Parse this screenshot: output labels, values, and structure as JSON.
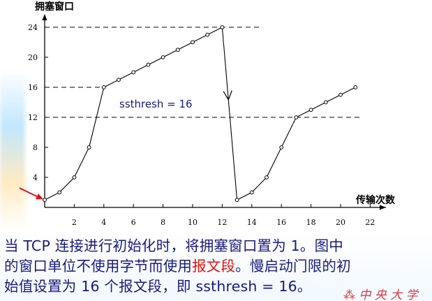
{
  "chart_data": {
    "type": "line",
    "ylabel": "拥塞窗口",
    "xlabel": "传输次数",
    "x_ticks": [
      0,
      2,
      4,
      6,
      8,
      10,
      12,
      14,
      16,
      18,
      20,
      22
    ],
    "x_tick_labels": [
      "2",
      "4",
      "6",
      "8",
      "10",
      "12",
      "14",
      "16",
      "18",
      "20",
      "22"
    ],
    "y_ticks": [
      4,
      8,
      12,
      16,
      20,
      24
    ],
    "xlim": [
      0,
      22.5
    ],
    "ylim": [
      0,
      26
    ],
    "series": [
      {
        "x": [
          0,
          1,
          2,
          3,
          4,
          5,
          6,
          7,
          8,
          9,
          10,
          11,
          12,
          13,
          14,
          15,
          16,
          17,
          18,
          19,
          20,
          21
        ],
        "y": [
          1,
          2,
          4,
          8,
          16,
          17,
          18,
          19,
          20,
          21,
          22,
          23,
          24,
          1,
          2,
          4,
          8,
          12,
          13,
          14,
          15,
          16
        ],
        "markers": "hollow-circle",
        "color": "#000000"
      }
    ],
    "reference_lines": [
      {
        "y": 24,
        "x_from": 0,
        "x_to": 14.5,
        "style": "dashed"
      },
      {
        "y": 16,
        "x_from": 0,
        "x_to": 4,
        "style": "dashed"
      },
      {
        "y": 12,
        "x_from": 0,
        "x_to": 21.5,
        "style": "dashed"
      }
    ],
    "annotations": [
      {
        "text": "ssthresh = 16",
        "color": "#1a1a7a"
      }
    ],
    "arrows": [
      {
        "type": "start-pointer",
        "at_x": 0,
        "at_y": 1,
        "color": "#e01010"
      },
      {
        "type": "drop",
        "from_x": 12,
        "from_y": 24,
        "to_x": 13,
        "to_y": 1
      }
    ]
  },
  "caption": {
    "line1": "当 TCP 连接进行初始化时，将拥塞窗口置为 1。图中",
    "line2_a": "的窗口单位不使用字节而使用",
    "line2_highlight": "报文段",
    "line2_b": "。慢启动门限的初",
    "line3": "始值设置为 16 个报文段，即 ssthresh = 16。"
  },
  "seal_text": "一 中 央 大 学 标"
}
